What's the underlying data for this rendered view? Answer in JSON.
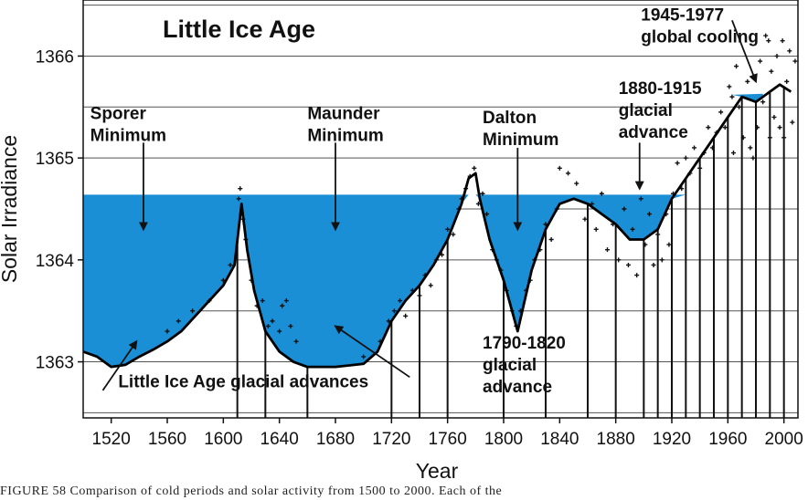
{
  "chart_data": {
    "type": "line",
    "title": "Little Ice Age",
    "xlabel": "Year",
    "ylabel": "Solar Irradiance",
    "xlim": [
      1500,
      2010
    ],
    "ylim": [
      1362.45,
      1366.55
    ],
    "x_ticks": [
      1520,
      1560,
      1600,
      1640,
      1680,
      1720,
      1760,
      1800,
      1840,
      1880,
      1920,
      1960,
      2000
    ],
    "x_tick_labels": [
      "1520",
      "1560",
      "1600",
      "1640",
      "1680",
      "1720",
      "1760",
      "1800",
      "1840",
      "1880",
      "1920",
      "1960",
      "2000"
    ],
    "y_ticks": [
      1363,
      1364,
      1365,
      1366
    ],
    "y_tick_labels": [
      "1363",
      "1364",
      "1365",
      "1366"
    ],
    "grid": "horizontal",
    "shading_level": 1364.64,
    "shaded_color": "#1a8fd6",
    "curve_color": "#000000",
    "series": [
      {
        "values": [
          [
            1500,
            1363.1
          ],
          [
            1510,
            1363.05
          ],
          [
            1520,
            1362.95
          ],
          [
            1530,
            1362.97
          ],
          [
            1540,
            1363.05
          ],
          [
            1550,
            1363.12
          ],
          [
            1560,
            1363.2
          ],
          [
            1570,
            1363.3
          ],
          [
            1580,
            1363.45
          ],
          [
            1590,
            1363.6
          ],
          [
            1600,
            1363.75
          ],
          [
            1608,
            1363.95
          ],
          [
            1613,
            1364.55
          ],
          [
            1617,
            1364.1
          ],
          [
            1622,
            1363.7
          ],
          [
            1630,
            1363.3
          ],
          [
            1640,
            1363.1
          ],
          [
            1650,
            1363.0
          ],
          [
            1660,
            1362.95
          ],
          [
            1680,
            1362.95
          ],
          [
            1700,
            1362.98
          ],
          [
            1710,
            1363.1
          ],
          [
            1720,
            1363.4
          ],
          [
            1730,
            1363.6
          ],
          [
            1740,
            1363.75
          ],
          [
            1750,
            1363.95
          ],
          [
            1760,
            1364.2
          ],
          [
            1770,
            1364.55
          ],
          [
            1775,
            1364.8
          ],
          [
            1780,
            1364.85
          ],
          [
            1783,
            1364.6
          ],
          [
            1790,
            1364.2
          ],
          [
            1800,
            1363.8
          ],
          [
            1810,
            1363.3
          ],
          [
            1815,
            1363.6
          ],
          [
            1820,
            1363.9
          ],
          [
            1830,
            1364.3
          ],
          [
            1840,
            1364.55
          ],
          [
            1850,
            1364.6
          ],
          [
            1860,
            1364.55
          ],
          [
            1870,
            1364.45
          ],
          [
            1880,
            1364.35
          ],
          [
            1890,
            1364.2
          ],
          [
            1900,
            1364.2
          ],
          [
            1910,
            1364.3
          ],
          [
            1920,
            1364.6
          ],
          [
            1930,
            1364.8
          ],
          [
            1940,
            1365.0
          ],
          [
            1950,
            1365.2
          ],
          [
            1960,
            1365.4
          ],
          [
            1970,
            1365.6
          ],
          [
            1980,
            1365.55
          ],
          [
            1990,
            1365.65
          ],
          [
            1997,
            1365.72
          ],
          [
            2005,
            1365.65
          ]
        ]
      }
    ],
    "annotations": [
      {
        "lines": [
          "Sporer",
          "Minimum"
        ],
        "x": 1505,
        "y": 1365.38,
        "arrow_from": [
          1543,
          1365.15
        ],
        "arrow_to": [
          1543,
          1364.3
        ]
      },
      {
        "lines": [
          "Maunder",
          "Minimum"
        ],
        "x": 1660,
        "y": 1365.38,
        "arrow_from": [
          1680,
          1365.15
        ],
        "arrow_to": [
          1680,
          1364.3
        ]
      },
      {
        "lines": [
          "Dalton",
          "Minimum"
        ],
        "x": 1785,
        "y": 1365.34,
        "arrow_from": [
          1810,
          1365.1
        ],
        "arrow_to": [
          1810,
          1364.3
        ]
      },
      {
        "lines": [
          "1880-1915",
          "glacial",
          "advance"
        ],
        "x": 1882,
        "y": 1365.63,
        "arrow_from": [
          1897,
          1365.15
        ],
        "arrow_to": [
          1897,
          1364.7
        ]
      },
      {
        "lines": [
          "1945-1977",
          "global cooling"
        ],
        "x": 1898,
        "y": 1366.35,
        "arrow_from": [
          1963,
          1366.35
        ],
        "arrow_to": [
          1980,
          1365.75
        ]
      },
      {
        "lines": [
          "1790-1820",
          "glacial",
          "advance"
        ],
        "x": 1785,
        "y": 1363.13
      },
      {
        "lines": [
          "Little Ice Age glacial advances"
        ],
        "x": 1525,
        "y": 1362.75
      }
    ],
    "leader_arrows": [
      {
        "from": [
          1514,
          1362.72
        ],
        "to": [
          1538,
          1363.2
        ]
      },
      {
        "from": [
          1733,
          1362.85
        ],
        "to": [
          1680,
          1363.35
        ]
      }
    ],
    "year_bars": [
      1610,
      1630,
      1660,
      1720,
      1740,
      1760,
      1800,
      1830,
      1860,
      1880,
      1900,
      1910,
      1920,
      1930,
      1940,
      1950,
      1960,
      1970,
      1980,
      1990,
      2000
    ],
    "dots": [
      [
        1560,
        1363.3
      ],
      [
        1568,
        1363.4
      ],
      [
        1578,
        1363.5
      ],
      [
        1590,
        1363.6
      ],
      [
        1600,
        1363.8
      ],
      [
        1605,
        1363.95
      ],
      [
        1611,
        1364.6
      ],
      [
        1612,
        1364.7
      ],
      [
        1614,
        1364.4
      ],
      [
        1616,
        1364.2
      ],
      [
        1620,
        1363.8
      ],
      [
        1624,
        1363.55
      ],
      [
        1628,
        1363.6
      ],
      [
        1632,
        1363.35
      ],
      [
        1635,
        1363.4
      ],
      [
        1640,
        1363.3
      ],
      [
        1642,
        1363.55
      ],
      [
        1645,
        1363.6
      ],
      [
        1648,
        1363.35
      ],
      [
        1652,
        1363.2
      ],
      [
        1700,
        1363.05
      ],
      [
        1712,
        1363.2
      ],
      [
        1718,
        1363.4
      ],
      [
        1722,
        1363.5
      ],
      [
        1726,
        1363.6
      ],
      [
        1730,
        1363.45
      ],
      [
        1735,
        1363.7
      ],
      [
        1740,
        1363.65
      ],
      [
        1744,
        1363.85
      ],
      [
        1748,
        1363.75
      ],
      [
        1752,
        1364.0
      ],
      [
        1756,
        1364.05
      ],
      [
        1760,
        1364.3
      ],
      [
        1764,
        1364.25
      ],
      [
        1768,
        1364.5
      ],
      [
        1770,
        1364.6
      ],
      [
        1773,
        1364.7
      ],
      [
        1776,
        1364.82
      ],
      [
        1779,
        1364.9
      ],
      [
        1782,
        1364.55
      ],
      [
        1785,
        1364.65
      ],
      [
        1788,
        1364.45
      ],
      [
        1792,
        1364.1
      ],
      [
        1795,
        1364.0
      ],
      [
        1798,
        1363.9
      ],
      [
        1802,
        1363.7
      ],
      [
        1806,
        1363.5
      ],
      [
        1809,
        1363.35
      ],
      [
        1812,
        1363.5
      ],
      [
        1816,
        1363.7
      ],
      [
        1819,
        1363.8
      ],
      [
        1822,
        1364.0
      ],
      [
        1826,
        1364.1
      ],
      [
        1830,
        1364.35
      ],
      [
        1834,
        1364.2
      ],
      [
        1838,
        1364.5
      ],
      [
        1840,
        1364.9
      ],
      [
        1846,
        1364.85
      ],
      [
        1852,
        1364.75
      ],
      [
        1858,
        1364.4
      ],
      [
        1863,
        1364.55
      ],
      [
        1866,
        1364.3
      ],
      [
        1870,
        1364.65
      ],
      [
        1874,
        1364.1
      ],
      [
        1878,
        1364.35
      ],
      [
        1882,
        1364.0
      ],
      [
        1886,
        1364.5
      ],
      [
        1889,
        1363.95
      ],
      [
        1892,
        1364.3
      ],
      [
        1895,
        1363.85
      ],
      [
        1898,
        1364.6
      ],
      [
        1901,
        1364.15
      ],
      [
        1904,
        1364.45
      ],
      [
        1907,
        1363.95
      ],
      [
        1910,
        1364.25
      ],
      [
        1913,
        1364.0
      ],
      [
        1916,
        1364.45
      ],
      [
        1918,
        1364.15
      ],
      [
        1921,
        1364.65
      ],
      [
        1924,
        1364.95
      ],
      [
        1927,
        1364.7
      ],
      [
        1930,
        1365.0
      ],
      [
        1933,
        1364.85
      ],
      [
        1936,
        1365.1
      ],
      [
        1940,
        1364.9
      ],
      [
        1943,
        1365.05
      ],
      [
        1946,
        1365.3
      ],
      [
        1949,
        1365.1
      ],
      [
        1952,
        1365.25
      ],
      [
        1955,
        1365.45
      ],
      [
        1958,
        1365.3
      ],
      [
        1961,
        1365.7
      ],
      [
        1963,
        1365.6
      ],
      [
        1966,
        1365.9
      ],
      [
        1968,
        1365.5
      ],
      [
        1971,
        1365.2
      ],
      [
        1974,
        1365.75
      ],
      [
        1976,
        1365.1
      ],
      [
        1979,
        1365.8
      ],
      [
        1981,
        1365.3
      ],
      [
        1983,
        1365.95
      ],
      [
        1985,
        1365.55
      ],
      [
        1987,
        1366.2
      ],
      [
        1989,
        1366.15
      ],
      [
        1991,
        1365.85
      ],
      [
        1993,
        1365.4
      ],
      [
        1995,
        1366.0
      ],
      [
        1997,
        1365.3
      ],
      [
        1999,
        1366.15
      ],
      [
        2002,
        1365.75
      ],
      [
        2004,
        1366.05
      ],
      [
        2006,
        1365.35
      ],
      [
        2008,
        1365.95
      ],
      [
        1964,
        1365.05
      ],
      [
        1978,
        1365.0
      ],
      [
        1990,
        1365.2
      ],
      [
        2000,
        1365.2
      ]
    ]
  },
  "caption": "FIGURE 58   Comparison of cold periods and solar activity from 1500 to 2000. Each of the"
}
